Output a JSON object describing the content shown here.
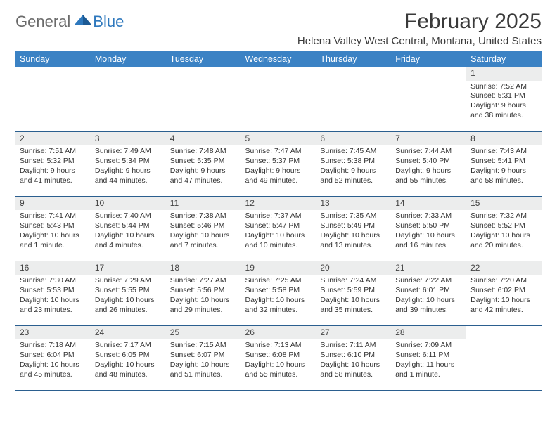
{
  "logo": {
    "word1": "General",
    "word2": "Blue",
    "mark_color": "#2e78bd",
    "text_gray": "#6b6b6b"
  },
  "title": "February 2025",
  "location": "Helena Valley West Central, Montana, United States",
  "colors": {
    "header_bg": "#3b82c4",
    "header_text": "#ffffff",
    "daynum_bg": "#eceded",
    "row_border": "#2b5f8f",
    "body_text": "#333333"
  },
  "weekdays": [
    "Sunday",
    "Monday",
    "Tuesday",
    "Wednesday",
    "Thursday",
    "Friday",
    "Saturday"
  ],
  "weeks": [
    [
      {},
      {},
      {},
      {},
      {},
      {},
      {
        "n": "1",
        "sr": "7:52 AM",
        "ss": "5:31 PM",
        "dl": "9 hours and 38 minutes."
      }
    ],
    [
      {
        "n": "2",
        "sr": "7:51 AM",
        "ss": "5:32 PM",
        "dl": "9 hours and 41 minutes."
      },
      {
        "n": "3",
        "sr": "7:49 AM",
        "ss": "5:34 PM",
        "dl": "9 hours and 44 minutes."
      },
      {
        "n": "4",
        "sr": "7:48 AM",
        "ss": "5:35 PM",
        "dl": "9 hours and 47 minutes."
      },
      {
        "n": "5",
        "sr": "7:47 AM",
        "ss": "5:37 PM",
        "dl": "9 hours and 49 minutes."
      },
      {
        "n": "6",
        "sr": "7:45 AM",
        "ss": "5:38 PM",
        "dl": "9 hours and 52 minutes."
      },
      {
        "n": "7",
        "sr": "7:44 AM",
        "ss": "5:40 PM",
        "dl": "9 hours and 55 minutes."
      },
      {
        "n": "8",
        "sr": "7:43 AM",
        "ss": "5:41 PM",
        "dl": "9 hours and 58 minutes."
      }
    ],
    [
      {
        "n": "9",
        "sr": "7:41 AM",
        "ss": "5:43 PM",
        "dl": "10 hours and 1 minute."
      },
      {
        "n": "10",
        "sr": "7:40 AM",
        "ss": "5:44 PM",
        "dl": "10 hours and 4 minutes."
      },
      {
        "n": "11",
        "sr": "7:38 AM",
        "ss": "5:46 PM",
        "dl": "10 hours and 7 minutes."
      },
      {
        "n": "12",
        "sr": "7:37 AM",
        "ss": "5:47 PM",
        "dl": "10 hours and 10 minutes."
      },
      {
        "n": "13",
        "sr": "7:35 AM",
        "ss": "5:49 PM",
        "dl": "10 hours and 13 minutes."
      },
      {
        "n": "14",
        "sr": "7:33 AM",
        "ss": "5:50 PM",
        "dl": "10 hours and 16 minutes."
      },
      {
        "n": "15",
        "sr": "7:32 AM",
        "ss": "5:52 PM",
        "dl": "10 hours and 20 minutes."
      }
    ],
    [
      {
        "n": "16",
        "sr": "7:30 AM",
        "ss": "5:53 PM",
        "dl": "10 hours and 23 minutes."
      },
      {
        "n": "17",
        "sr": "7:29 AM",
        "ss": "5:55 PM",
        "dl": "10 hours and 26 minutes."
      },
      {
        "n": "18",
        "sr": "7:27 AM",
        "ss": "5:56 PM",
        "dl": "10 hours and 29 minutes."
      },
      {
        "n": "19",
        "sr": "7:25 AM",
        "ss": "5:58 PM",
        "dl": "10 hours and 32 minutes."
      },
      {
        "n": "20",
        "sr": "7:24 AM",
        "ss": "5:59 PM",
        "dl": "10 hours and 35 minutes."
      },
      {
        "n": "21",
        "sr": "7:22 AM",
        "ss": "6:01 PM",
        "dl": "10 hours and 39 minutes."
      },
      {
        "n": "22",
        "sr": "7:20 AM",
        "ss": "6:02 PM",
        "dl": "10 hours and 42 minutes."
      }
    ],
    [
      {
        "n": "23",
        "sr": "7:18 AM",
        "ss": "6:04 PM",
        "dl": "10 hours and 45 minutes."
      },
      {
        "n": "24",
        "sr": "7:17 AM",
        "ss": "6:05 PM",
        "dl": "10 hours and 48 minutes."
      },
      {
        "n": "25",
        "sr": "7:15 AM",
        "ss": "6:07 PM",
        "dl": "10 hours and 51 minutes."
      },
      {
        "n": "26",
        "sr": "7:13 AM",
        "ss": "6:08 PM",
        "dl": "10 hours and 55 minutes."
      },
      {
        "n": "27",
        "sr": "7:11 AM",
        "ss": "6:10 PM",
        "dl": "10 hours and 58 minutes."
      },
      {
        "n": "28",
        "sr": "7:09 AM",
        "ss": "6:11 PM",
        "dl": "11 hours and 1 minute."
      },
      {}
    ]
  ],
  "labels": {
    "sunrise": "Sunrise: ",
    "sunset": "Sunset: ",
    "daylight": "Daylight: "
  }
}
